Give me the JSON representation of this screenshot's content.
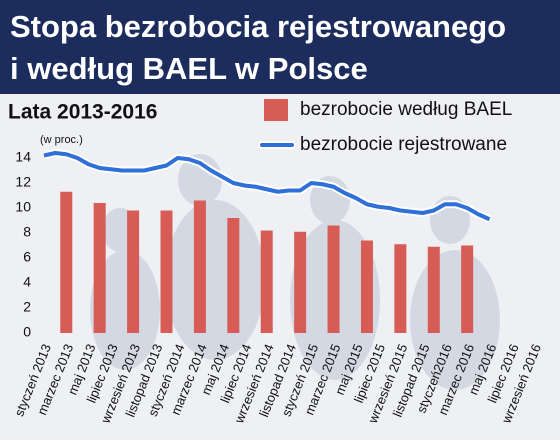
{
  "chart_data": {
    "type": "bar-line",
    "title": [
      "Stopa bezrobocia rejestrowanego",
      "i według BAEL w Polsce"
    ],
    "subtitle": "Lata 2013-2016",
    "y_label": "(w proc.)",
    "categories": [
      "styczeń 2013",
      null,
      "marzec 2013",
      null,
      "maj 2013",
      null,
      "lipiec 2013",
      null,
      "wrzesień 2013",
      null,
      "listopad 2013",
      null,
      "styczeń 2014",
      null,
      "marzec 2014",
      null,
      "maj 2014",
      null,
      "lipiec 2014",
      null,
      "wrzesień 2014",
      null,
      "listopad 2014",
      null,
      "styczeń 2015",
      null,
      "marzec 2015",
      null,
      "maj 2015",
      null,
      "lipiec 2015",
      null,
      "wrzesień 2015",
      null,
      "listopad 2015",
      null,
      "styczeń2016",
      null,
      "marzec 2016",
      null,
      "maj 2016",
      null,
      "lipiec 2016",
      null,
      "wrzesień 2016"
    ],
    "series": [
      {
        "name": "bezrobocie według BAEL",
        "type": "bar",
        "color": "#d65c55",
        "values": [
          null,
          null,
          11.3,
          null,
          null,
          10.4,
          null,
          null,
          9.8,
          null,
          null,
          9.8,
          null,
          null,
          10.6,
          null,
          null,
          9.2,
          null,
          null,
          8.2,
          null,
          null,
          8.1,
          null,
          null,
          8.6,
          null,
          null,
          7.4,
          null,
          null,
          7.1,
          null,
          null,
          6.9,
          null,
          null,
          7.0,
          null,
          null,
          null,
          null,
          null,
          null
        ]
      },
      {
        "name": "bezrobocie rejestrowane",
        "type": "line",
        "color": "#2f6fd8",
        "values": [
          14.2,
          14.4,
          14.3,
          14.0,
          13.5,
          13.2,
          13.1,
          13.0,
          13.0,
          13.0,
          13.2,
          13.4,
          14.0,
          13.9,
          13.6,
          13.0,
          12.5,
          12.0,
          11.8,
          11.7,
          11.5,
          11.3,
          11.4,
          11.4,
          12.0,
          11.9,
          11.7,
          11.2,
          10.8,
          10.3,
          10.1,
          10.0,
          9.8,
          9.7,
          9.6,
          9.8,
          10.3,
          10.3,
          10.0,
          9.5,
          9.1,
          null,
          null,
          null,
          null
        ]
      }
    ],
    "ylim": [
      0,
      14
    ],
    "yticks": [
      0,
      2,
      4,
      6,
      8,
      10,
      12,
      14
    ],
    "grid": false
  }
}
